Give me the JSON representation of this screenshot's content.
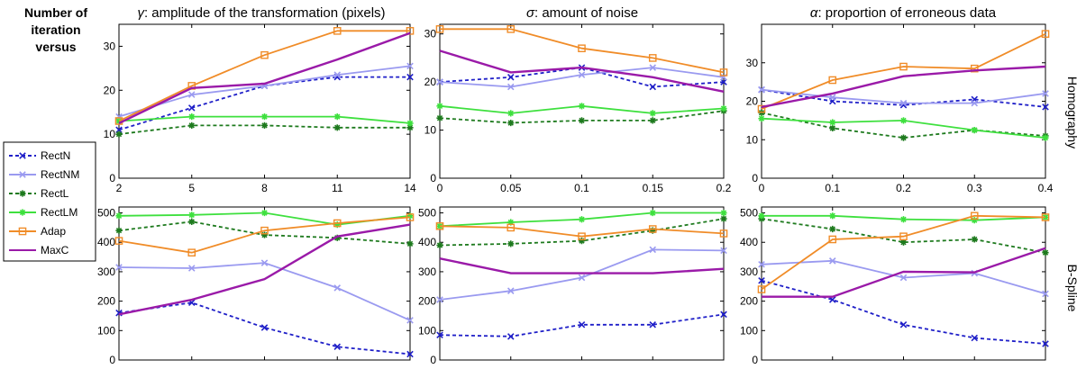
{
  "figure": {
    "row_label": [
      "Number of",
      "iteration",
      "versus"
    ],
    "row_names": [
      "Homography",
      "B-Spline"
    ],
    "column_titles": [
      {
        "symbol": "γ",
        "text": ": amplitude of the transformation (pixels)"
      },
      {
        "symbol": "σ",
        "text": ": amount of noise"
      },
      {
        "symbol": "α",
        "text": ": proportion of erroneous data"
      }
    ]
  },
  "legend": {
    "placement": "left-middle",
    "entries": [
      {
        "name": "RectN",
        "color": "#1f1fc8",
        "dash": true,
        "marker": "x"
      },
      {
        "name": "RectNM",
        "color": "#9a9af0",
        "dash": false,
        "marker": "x"
      },
      {
        "name": "RectL",
        "color": "#1e7a1e",
        "dash": true,
        "marker": "star"
      },
      {
        "name": "RectLM",
        "color": "#3ee03e",
        "dash": false,
        "marker": "star"
      },
      {
        "name": "Adap",
        "color": "#f08c28",
        "dash": false,
        "marker": "square"
      },
      {
        "name": "MaxC",
        "color": "#9a1aa8",
        "dash": false,
        "marker": "none"
      }
    ]
  },
  "chart_data": [
    {
      "type": "line",
      "row": 0,
      "col": 0,
      "x": [
        2,
        5,
        8,
        11,
        14
      ],
      "xlim": [
        2,
        14
      ],
      "ylim": [
        0,
        35
      ],
      "xticks": [
        "2",
        "5",
        "8",
        "11",
        "14"
      ],
      "yticks": [
        0,
        10,
        20,
        30
      ],
      "series": [
        {
          "name": "RectN",
          "values": [
            11,
            16,
            21,
            23,
            23
          ]
        },
        {
          "name": "RectNM",
          "values": [
            14,
            19,
            21,
            23.5,
            25.5
          ]
        },
        {
          "name": "RectL",
          "values": [
            10,
            12,
            12,
            11.5,
            11.5
          ]
        },
        {
          "name": "RectLM",
          "values": [
            13,
            14,
            14,
            14,
            12.5
          ]
        },
        {
          "name": "Adap",
          "values": [
            13,
            21,
            28,
            33.5,
            33.5
          ]
        },
        {
          "name": "MaxC",
          "values": [
            12.5,
            20.5,
            21.5,
            27,
            33
          ]
        }
      ]
    },
    {
      "type": "line",
      "row": 0,
      "col": 1,
      "x": [
        0,
        0.05,
        0.1,
        0.15,
        0.2
      ],
      "xlim": [
        0,
        0.2
      ],
      "ylim": [
        0,
        32
      ],
      "xticks": [
        "0",
        "0.05",
        "0.1",
        "0.15",
        "0.2"
      ],
      "yticks": [
        0,
        10,
        20,
        30
      ],
      "series": [
        {
          "name": "RectN",
          "values": [
            20,
            21,
            23,
            19,
            20
          ]
        },
        {
          "name": "RectNM",
          "values": [
            20,
            19,
            21.5,
            23,
            21
          ]
        },
        {
          "name": "RectL",
          "values": [
            12.5,
            11.5,
            12,
            12,
            14
          ]
        },
        {
          "name": "RectLM",
          "values": [
            15,
            13.5,
            15,
            13.5,
            14.5
          ]
        },
        {
          "name": "Adap",
          "values": [
            31,
            31,
            27,
            25,
            22
          ]
        },
        {
          "name": "MaxC",
          "values": [
            26.5,
            22,
            23,
            21,
            18
          ]
        }
      ]
    },
    {
      "type": "line",
      "row": 0,
      "col": 2,
      "x": [
        0,
        0.1,
        0.2,
        0.3,
        0.4
      ],
      "xlim": [
        0,
        0.4
      ],
      "ylim": [
        0,
        40
      ],
      "xticks": [
        "0",
        "0.1",
        "0.2",
        "0.3",
        "0.4"
      ],
      "yticks": [
        0,
        10,
        20,
        30
      ],
      "series": [
        {
          "name": "RectN",
          "values": [
            23,
            20,
            19,
            20.5,
            18.5
          ]
        },
        {
          "name": "RectNM",
          "values": [
            23,
            21,
            19.5,
            19.5,
            22
          ]
        },
        {
          "name": "RectL",
          "values": [
            17,
            13,
            10.5,
            12.5,
            11
          ]
        },
        {
          "name": "RectLM",
          "values": [
            15.5,
            14.5,
            15,
            12.5,
            10.5
          ]
        },
        {
          "name": "Adap",
          "values": [
            18,
            25.5,
            29,
            28.5,
            37.5
          ]
        },
        {
          "name": "MaxC",
          "values": [
            18.5,
            22,
            26.5,
            28,
            29
          ]
        }
      ]
    },
    {
      "type": "line",
      "row": 1,
      "col": 0,
      "x": [
        2,
        5,
        8,
        11,
        14
      ],
      "xlim": [
        2,
        14
      ],
      "ylim": [
        0,
        520
      ],
      "yticks": [
        0,
        100,
        200,
        300,
        400,
        500
      ],
      "series": [
        {
          "name": "RectN",
          "values": [
            160,
            195,
            110,
            45,
            20
          ]
        },
        {
          "name": "RectNM",
          "values": [
            315,
            312,
            330,
            245,
            135
          ]
        },
        {
          "name": "RectL",
          "values": [
            440,
            470,
            425,
            415,
            395
          ]
        },
        {
          "name": "RectLM",
          "values": [
            490,
            493,
            500,
            460,
            490
          ]
        },
        {
          "name": "Adap",
          "values": [
            405,
            365,
            440,
            465,
            485
          ]
        },
        {
          "name": "MaxC",
          "values": [
            155,
            205,
            275,
            420,
            460
          ]
        }
      ]
    },
    {
      "type": "line",
      "row": 1,
      "col": 1,
      "x": [
        0,
        0.05,
        0.1,
        0.15,
        0.2
      ],
      "xlim": [
        0,
        0.2
      ],
      "ylim": [
        0,
        520
      ],
      "yticks": [
        0,
        100,
        200,
        300,
        400,
        500
      ],
      "series": [
        {
          "name": "RectN",
          "values": [
            85,
            80,
            120,
            120,
            155
          ]
        },
        {
          "name": "RectNM",
          "values": [
            205,
            235,
            280,
            375,
            372
          ]
        },
        {
          "name": "RectL",
          "values": [
            390,
            395,
            405,
            440,
            480
          ]
        },
        {
          "name": "RectLM",
          "values": [
            455,
            468,
            478,
            500,
            500
          ]
        },
        {
          "name": "Adap",
          "values": [
            455,
            450,
            420,
            445,
            430
          ]
        },
        {
          "name": "MaxC",
          "values": [
            345,
            295,
            295,
            295,
            310
          ]
        }
      ]
    },
    {
      "type": "line",
      "row": 1,
      "col": 2,
      "x": [
        0,
        0.1,
        0.2,
        0.3,
        0.4
      ],
      "xlim": [
        0,
        0.4
      ],
      "ylim": [
        0,
        520
      ],
      "yticks": [
        0,
        100,
        200,
        300,
        400,
        500
      ],
      "series": [
        {
          "name": "RectN",
          "values": [
            270,
            205,
            120,
            75,
            55
          ]
        },
        {
          "name": "RectNM",
          "values": [
            325,
            337,
            280,
            295,
            225
          ]
        },
        {
          "name": "RectL",
          "values": [
            480,
            445,
            400,
            410,
            365
          ]
        },
        {
          "name": "RectLM",
          "values": [
            490,
            490,
            478,
            475,
            485
          ]
        },
        {
          "name": "Adap",
          "values": [
            240,
            410,
            420,
            490,
            485
          ]
        },
        {
          "name": "MaxC",
          "values": [
            215,
            215,
            300,
            298,
            380
          ]
        }
      ]
    }
  ]
}
